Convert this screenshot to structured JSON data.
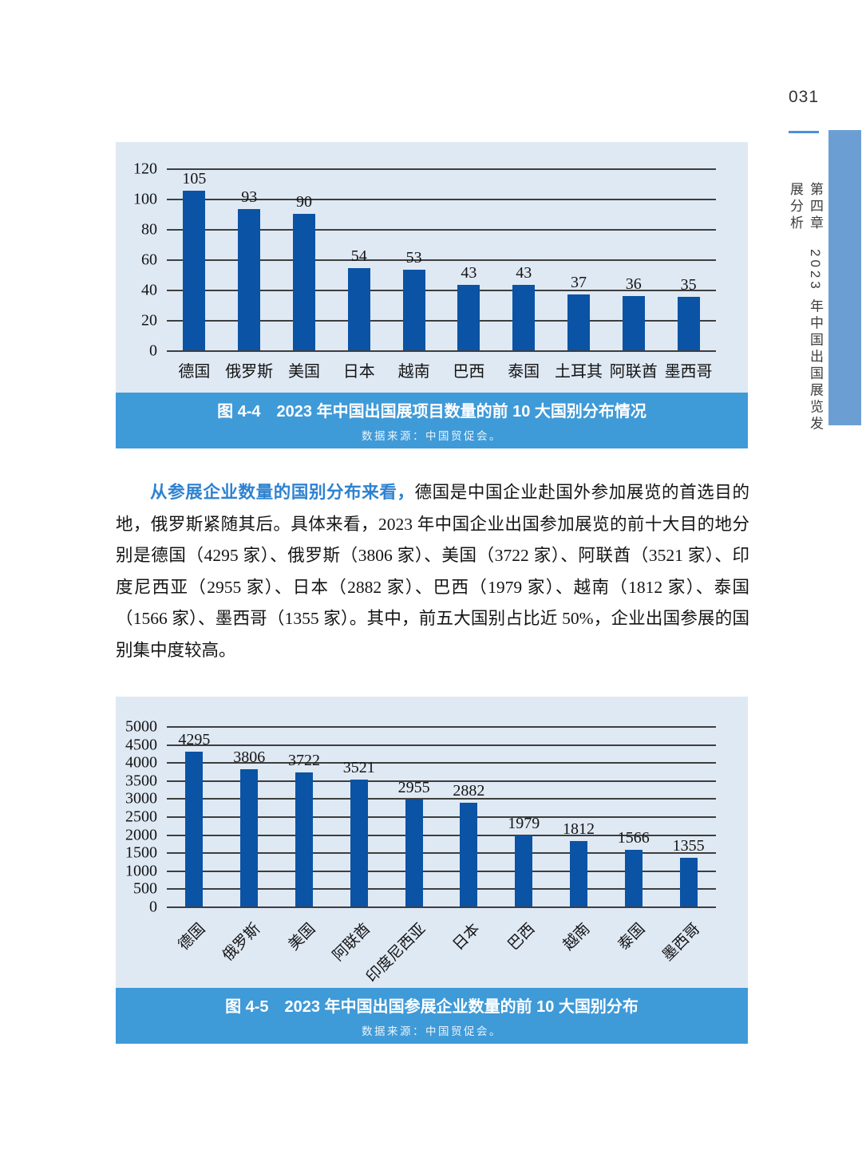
{
  "page": {
    "number": "031",
    "side_text": "第四章　2023 年中国出国展览发展分析"
  },
  "figures": [
    {
      "caption": "图 4-4　2023 年中国出国展项目数量的前 10 大国别分布情况",
      "source": "数据来源：中国贸促会。"
    },
    {
      "caption": "图 4-5　2023 年中国出国参展企业数量的前 10 大国别分布",
      "source": "数据来源：中国贸促会。"
    }
  ],
  "paragraph": {
    "lead": "从参展企业数量的国别分布来看，",
    "body": "德国是中国企业赴国外参加展览的首选目的地，俄罗斯紧随其后。具体来看，2023 年中国企业出国参加展览的前十大目的地分别是德国（4295 家）、俄罗斯（3806 家）、美国（3722 家）、阿联酋（3521 家）、印度尼西亚（2955 家）、日本（2882 家）、巴西（1979 家）、越南（1812 家）、泰国（1566 家）、墨西哥（1355 家）。其中，前五大国别占比近 50%，企业出国参展的国别集中度较高。"
  },
  "chart_data": [
    {
      "type": "bar",
      "title": "2023 年中国出国展项目数量的前 10 大国别分布情况",
      "categories": [
        "德国",
        "俄罗斯",
        "美国",
        "日本",
        "越南",
        "巴西",
        "泰国",
        "土耳其",
        "阿联酋",
        "墨西哥"
      ],
      "values": [
        105,
        93,
        90,
        54,
        53,
        43,
        43,
        37,
        36,
        35
      ],
      "xlabel": "",
      "ylabel": "",
      "ylim": [
        0,
        120
      ],
      "ytick": 20,
      "grid": true,
      "value_labels": true,
      "legend": "none",
      "xlabel_rotation": 0
    },
    {
      "type": "bar",
      "title": "2023 年中国出国参展企业数量的前 10 大国别分布",
      "categories": [
        "德国",
        "俄罗斯",
        "美国",
        "阿联酋",
        "印度尼西亚",
        "日本",
        "巴西",
        "越南",
        "泰国",
        "墨西哥"
      ],
      "values": [
        4295,
        3806,
        3722,
        3521,
        2955,
        2882,
        1979,
        1812,
        1566,
        1355
      ],
      "xlabel": "",
      "ylabel": "",
      "ylim": [
        0,
        5000
      ],
      "ytick": 500,
      "grid": true,
      "value_labels": true,
      "legend": "none",
      "xlabel_rotation": -45
    }
  ],
  "colors": {
    "bar": "#0b53a5",
    "panel_bg": "#dfe9f4",
    "caption_band": "#3f9ad8",
    "side_bar": "#6b9fd4",
    "lead_text": "#2e82d0",
    "accent_rule": "#4a90d9"
  }
}
